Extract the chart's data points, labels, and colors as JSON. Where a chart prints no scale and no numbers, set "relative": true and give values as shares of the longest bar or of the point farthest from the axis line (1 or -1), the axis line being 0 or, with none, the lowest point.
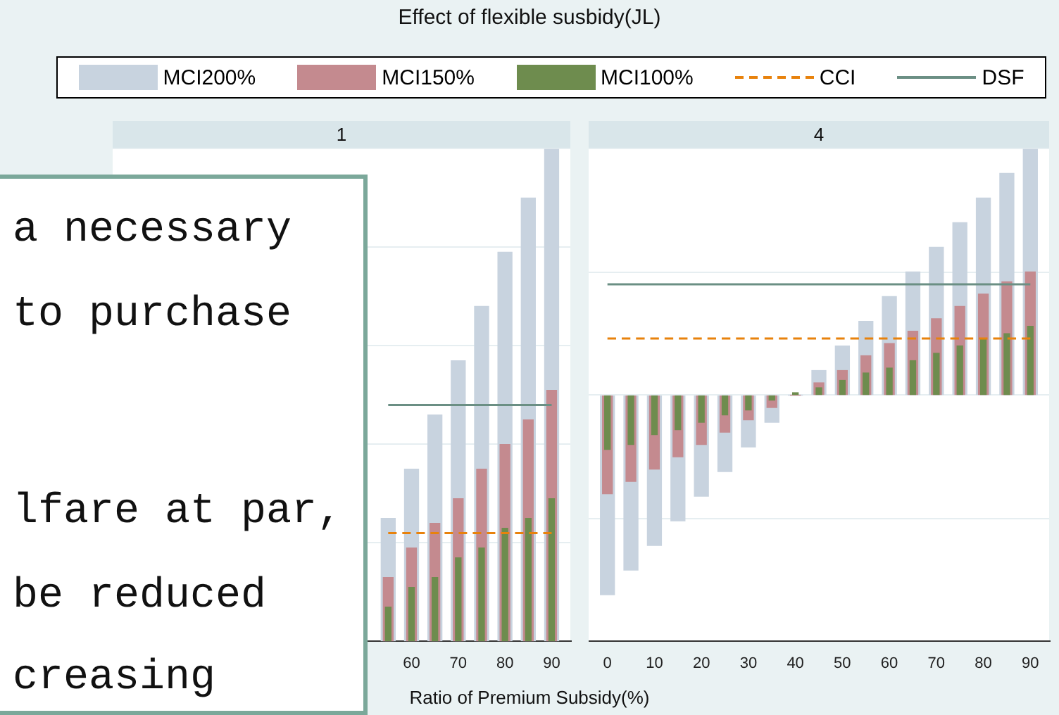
{
  "chart_data": [
    {
      "type": "bar",
      "title": "Effect of flexible susbidy(JL)",
      "subtitle": "1",
      "xlabel": "Ratio of Premium Subsidy(%)",
      "relative": true,
      "grid": "y",
      "legend": "top",
      "annotations": [
        "a necessary",
        "to purchase",
        "lfare at par,",
        "be reduced",
        "creasing"
      ],
      "x": [
        55,
        60,
        65,
        70,
        75,
        80,
        85,
        90
      ],
      "xlim": [
        -4,
        94
      ],
      "xticks": [
        60,
        70,
        80,
        90
      ],
      "series": [
        {
          "name": "MCI200%",
          "color": "#c8d3df",
          "values": [
            0.25,
            0.35,
            0.46,
            0.57,
            0.68,
            0.79,
            0.9,
            1
          ]
        },
        {
          "name": "MCI150%",
          "color": "#c48a8f",
          "values": [
            0.13,
            0.19,
            0.24,
            0.29,
            0.35,
            0.4,
            0.45,
            0.51
          ]
        },
        {
          "name": "MCI100%",
          "color": "#6e8c4e",
          "values": [
            0.07,
            0.11,
            0.13,
            0.17,
            0.19,
            0.23,
            0.25,
            0.29
          ]
        },
        {
          "name": "CCI",
          "type": "line",
          "color": "#e8820c",
          "line_style": "dashed",
          "marker": "none",
          "x": [
            55,
            90
          ],
          "values": [
            0.22,
            0.22
          ]
        },
        {
          "name": "DSF",
          "type": "line",
          "color": "#6b8f84",
          "line_style": "solid",
          "marker": "none",
          "x": [
            55,
            90
          ],
          "values": [
            0.48,
            0.48
          ]
        }
      ]
    },
    {
      "type": "bar",
      "subtitle": "4",
      "relative": true,
      "grid": "y",
      "x": [
        0,
        5,
        10,
        15,
        20,
        25,
        30,
        35,
        40,
        45,
        50,
        55,
        60,
        65,
        70,
        75,
        80,
        85,
        90
      ],
      "xlim": [
        -4,
        94
      ],
      "xticks": [
        0,
        10,
        20,
        30,
        40,
        50,
        60,
        70,
        80,
        90
      ],
      "series": [
        {
          "color": "#c8d3df",
          "values": [
            -0.81,
            -0.71,
            -0.61,
            -0.51,
            -0.41,
            -0.31,
            -0.21,
            -0.11,
            0,
            0.1,
            0.2,
            0.3,
            0.4,
            0.5,
            0.6,
            0.7,
            0.8,
            0.9,
            1
          ]
        },
        {
          "color": "#c48a8f",
          "values": [
            -0.4,
            -0.35,
            -0.3,
            -0.25,
            -0.2,
            -0.15,
            -0.1,
            -0.05,
            0,
            0.05,
            0.1,
            0.16,
            0.21,
            0.26,
            0.31,
            0.36,
            0.41,
            0.46,
            0.5
          ]
        },
        {
          "color": "#6e8c4e",
          "values": [
            -0.22,
            -0.2,
            -0.16,
            -0.14,
            -0.11,
            -0.08,
            -0.06,
            -0.02,
            0.01,
            0.03,
            0.06,
            0.09,
            0.11,
            0.14,
            0.17,
            0.2,
            0.23,
            0.25,
            0.28
          ]
        },
        {
          "type": "line",
          "color": "#e8820c",
          "line_style": "dashed",
          "marker": "none",
          "x": [
            0,
            90
          ],
          "values": [
            0.23,
            0.23
          ]
        },
        {
          "type": "line",
          "color": "#6b8f84",
          "line_style": "solid",
          "marker": "none",
          "x": [
            0,
            90
          ],
          "values": [
            0.45,
            0.45
          ]
        }
      ]
    }
  ]
}
